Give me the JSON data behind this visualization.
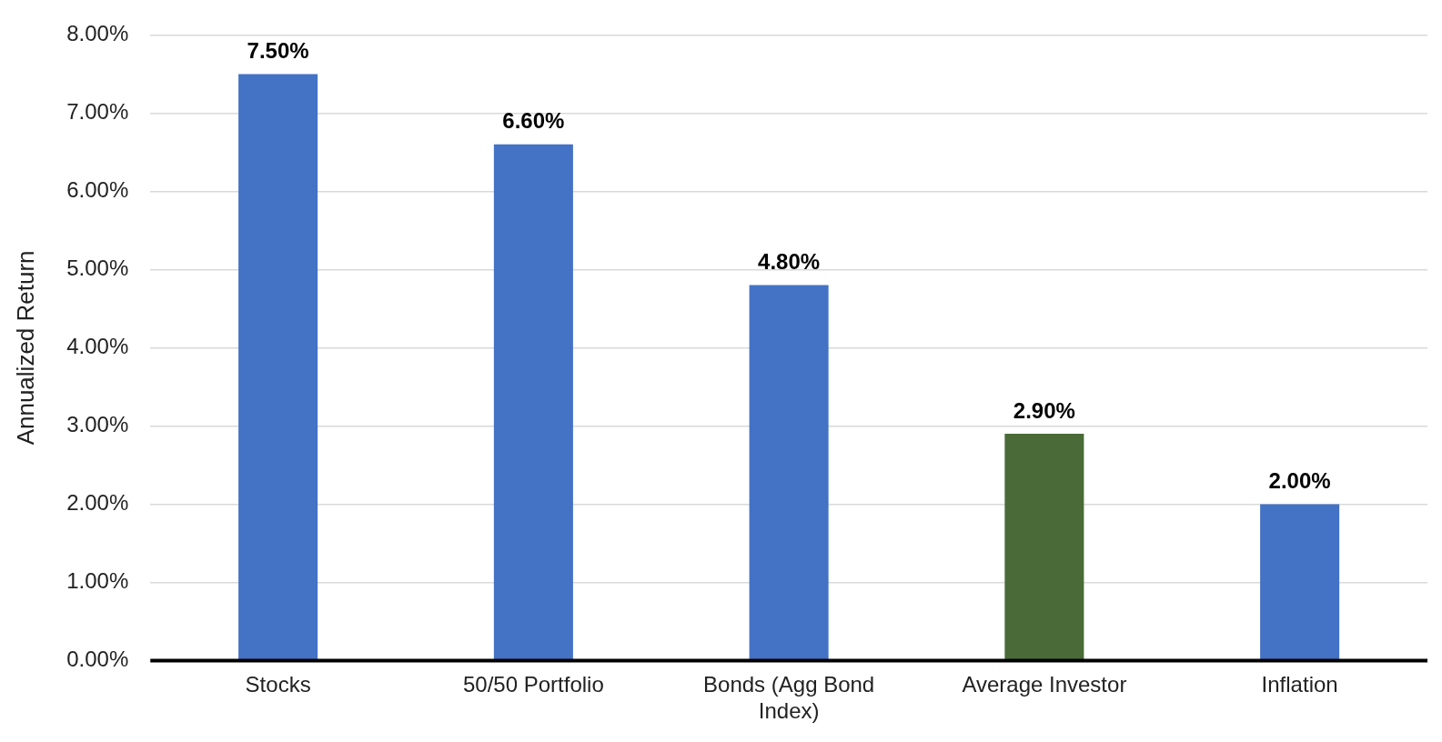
{
  "chart_data": {
    "type": "bar",
    "ylabel": "Annualized Return",
    "categories": [
      "Stocks",
      "50/50 Portfolio",
      "Bonds (Agg Bond Index)",
      "Average Investor",
      "Inflation"
    ],
    "values": [
      7.5,
      6.6,
      4.8,
      2.9,
      2.0
    ],
    "colors": [
      "#4472c4",
      "#4472c4",
      "#4472c4",
      "#4a6b38",
      "#4472c4"
    ],
    "value_labels": [
      "7.50%",
      "6.60%",
      "4.80%",
      "2.90%",
      "2.00%"
    ],
    "ylim": [
      0,
      8
    ],
    "yticks": [
      {
        "value": 0,
        "label": "0.00%"
      },
      {
        "value": 1,
        "label": "1.00%"
      },
      {
        "value": 2,
        "label": "2.00%"
      },
      {
        "value": 3,
        "label": "3.00%"
      },
      {
        "value": 4,
        "label": "4.00%"
      },
      {
        "value": 5,
        "label": "5.00%"
      },
      {
        "value": 6,
        "label": "6.00%"
      },
      {
        "value": 7,
        "label": "7.00%"
      },
      {
        "value": 8,
        "label": "8.00%"
      }
    ],
    "grid": "y",
    "legend": false
  }
}
